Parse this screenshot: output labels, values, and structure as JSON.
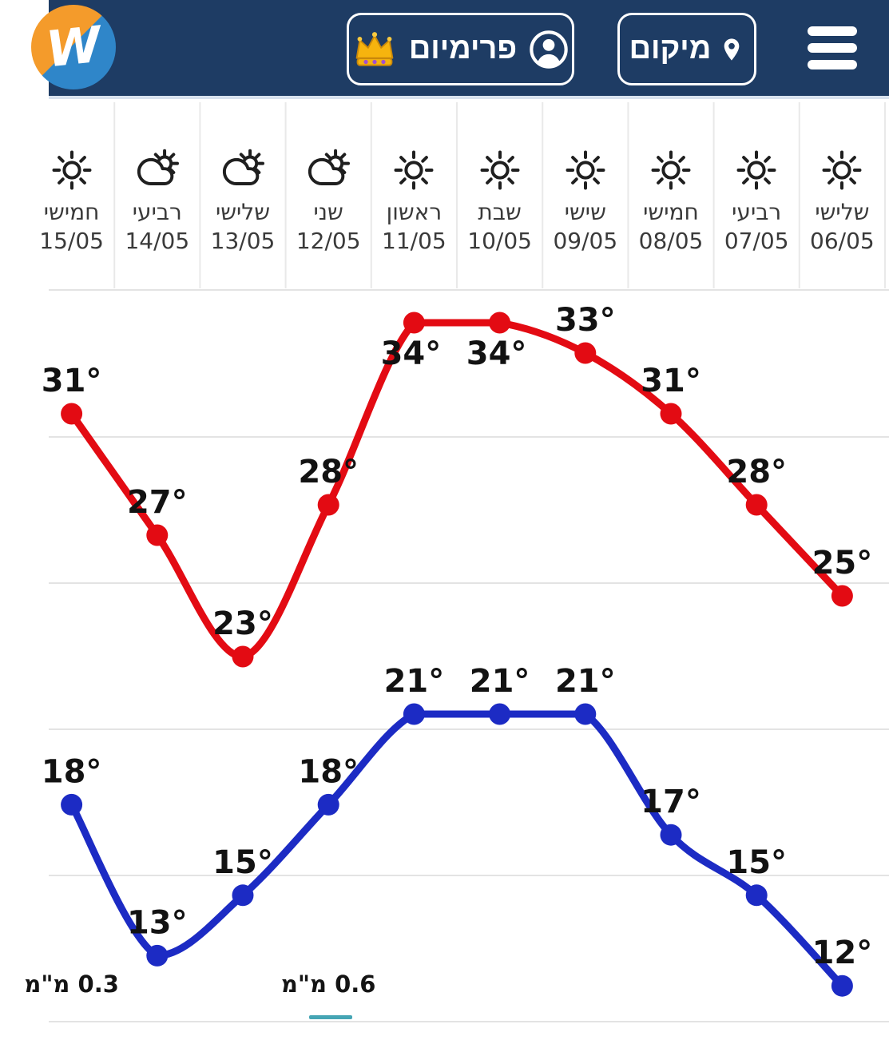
{
  "header": {
    "logo": {
      "letter": "W"
    },
    "menu_button": {
      "icon": "hamburger-icon"
    },
    "location_button": {
      "label": "מיקום",
      "icon": "location-pin-icon"
    },
    "premium_button": {
      "label": "פרימיום",
      "leading_icon": "crown-icon",
      "trailing_icon": "account-circle-icon"
    }
  },
  "colors": {
    "header_bg": "#1e3c64",
    "max_line": "#e30b13",
    "min_line": "#1c2bc4",
    "grid": "#e3e3e3",
    "precip_underline": "#45a5b4",
    "logo_orange": "#f49b2b",
    "logo_blue": "#2f86c9"
  },
  "forecast": {
    "days": [
      {
        "weekday": "שלישי",
        "date": "06/05",
        "icon": "sun-icon"
      },
      {
        "weekday": "רביעי",
        "date": "07/05",
        "icon": "sun-icon"
      },
      {
        "weekday": "חמישי",
        "date": "08/05",
        "icon": "sun-icon"
      },
      {
        "weekday": "שישי",
        "date": "09/05",
        "icon": "sun-icon"
      },
      {
        "weekday": "שבת",
        "date": "10/05",
        "icon": "sun-icon"
      },
      {
        "weekday": "ראשון",
        "date": "11/05",
        "icon": "sun-icon"
      },
      {
        "weekday": "שני",
        "date": "12/05",
        "icon": "sun-cloud-icon"
      },
      {
        "weekday": "שלישי",
        "date": "13/05",
        "icon": "sun-cloud-icon"
      },
      {
        "weekday": "רביעי",
        "date": "14/05",
        "icon": "sun-cloud-icon"
      },
      {
        "weekday": "חמישי",
        "date": "15/05",
        "icon": "sun-icon"
      }
    ]
  },
  "chart_data": {
    "type": "line",
    "direction": "rtl",
    "title": "",
    "categories": [
      "06/05",
      "07/05",
      "08/05",
      "09/05",
      "10/05",
      "11/05",
      "12/05",
      "13/05",
      "14/05",
      "15/05"
    ],
    "series": [
      {
        "name": "max-temp",
        "color": "#e30b13",
        "unit": "°",
        "values": [
          25,
          28,
          31,
          33,
          34,
          34,
          28,
          23,
          27,
          31
        ],
        "label_below_indices": [
          4,
          5
        ]
      },
      {
        "name": "min-temp",
        "color": "#1c2bc4",
        "unit": "°",
        "values": [
          12,
          15,
          17,
          21,
          21,
          21,
          18,
          15,
          13,
          18
        ],
        "label_below_indices": []
      }
    ],
    "precipitation": [
      {
        "category": "12/05",
        "label": "0.6 מ\"מ",
        "underlined": true
      },
      {
        "category": "15/05",
        "label": "0.3 מ\"מ",
        "underlined": false
      }
    ],
    "grid": "horizontal",
    "legend": false,
    "ylim_hint": [
      10,
      36
    ]
  }
}
